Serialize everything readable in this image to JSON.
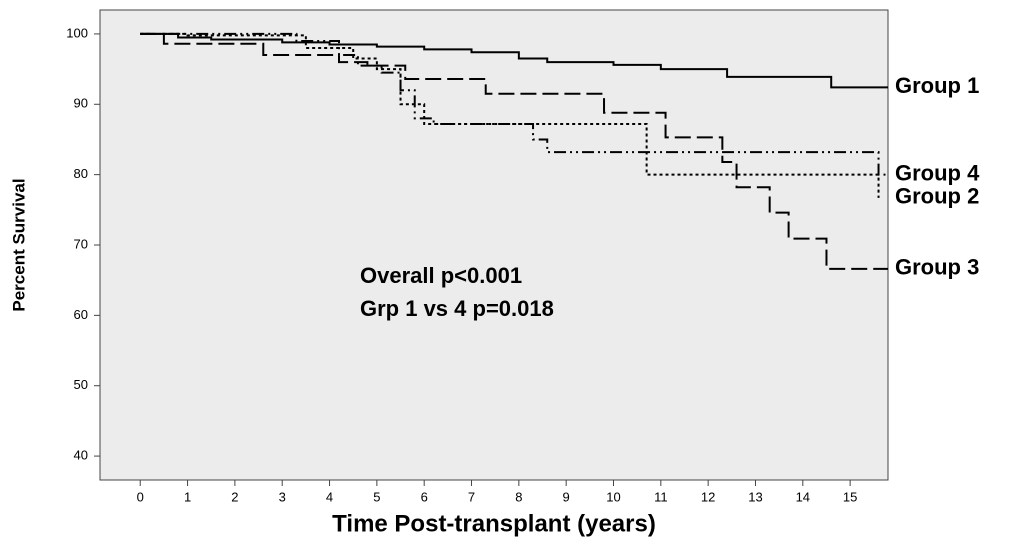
{
  "chart_data": {
    "type": "step",
    "xlabel": "Time Post-transplant (years)",
    "ylabel": "Percent Survival",
    "annotations": [
      "Overall p<0.001",
      "Grp 1 vs 4 p=0.018"
    ],
    "xlim": [
      -0.85,
      15.8
    ],
    "xticks": [
      0,
      1,
      2,
      3,
      4,
      5,
      6,
      7,
      8,
      9,
      10,
      11,
      12,
      13,
      14,
      15
    ],
    "ylim": [
      36.6,
      103.4
    ],
    "yticks": [
      40,
      50,
      60,
      70,
      80,
      90,
      100
    ],
    "grid": false,
    "series": [
      {
        "name": "Group 1",
        "color": "#000000",
        "dash": "solid",
        "x": [
          0,
          0.8,
          1.5,
          3,
          4,
          5,
          6,
          7,
          8,
          8.6,
          10,
          11,
          12.4,
          14.6,
          15.8
        ],
        "values": [
          100,
          99.5,
          99.2,
          98.8,
          98.5,
          98.2,
          97.8,
          97.4,
          96.5,
          96,
          95.6,
          95,
          93.9,
          92.4,
          92.4
        ]
      },
      {
        "name": "Group 4",
        "color": "#000000",
        "dash": "dashdot",
        "x": [
          0,
          3.3,
          4.2,
          4.6,
          5.1,
          5.5,
          5.8,
          6.2,
          8.3,
          8.6,
          15.55,
          15.6,
          15.8
        ],
        "values": [
          100,
          99,
          97,
          95.5,
          94.5,
          92,
          88,
          87.2,
          85,
          83.2,
          83.2,
          80,
          80
        ]
      },
      {
        "name": "Group 2",
        "color": "#000000",
        "dash": "dotted",
        "x": [
          0,
          1,
          3.5,
          4.5,
          5,
          5.5,
          6,
          10.7,
          15.5,
          15.6
        ],
        "values": [
          100,
          99.8,
          98,
          96.5,
          95,
          90,
          87.2,
          80,
          80,
          76.7
        ]
      },
      {
        "name": "Group 3",
        "color": "#000000",
        "dash": "longdash",
        "x": [
          0,
          0.5,
          2.6,
          4.2,
          4.8,
          5.6,
          7.3,
          9.8,
          11.1,
          12.3,
          12.6,
          13.3,
          13.7,
          14.5,
          15.8
        ],
        "values": [
          100,
          98.6,
          97,
          96,
          95.5,
          93.6,
          91.5,
          88.8,
          85.3,
          81.8,
          78.2,
          74.6,
          70.9,
          66.6,
          66.6
        ]
      }
    ]
  }
}
